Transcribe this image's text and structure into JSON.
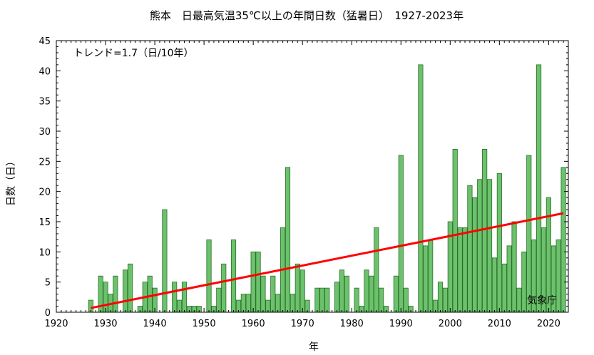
{
  "chart_data": {
    "type": "bar",
    "title": "熊本　日最高気温35℃以上の年間日数（猛暑日）　1927-2023年",
    "xlabel": "年",
    "ylabel": "日数（日）",
    "xlim": [
      1920,
      2024
    ],
    "ylim": [
      0,
      45
    ],
    "x_ticks": [
      1920,
      1930,
      1940,
      1950,
      1960,
      1970,
      1980,
      1990,
      2000,
      2010,
      2020
    ],
    "y_ticks": [
      0,
      5,
      10,
      15,
      20,
      25,
      30,
      35,
      40,
      45
    ],
    "grid": false,
    "bar_color": "#6cc26c",
    "bar_edge_color": "#2a6e2a",
    "trend_color": "#ff0000",
    "annotation": "トレンド=1.7（日/10年）",
    "source": "気象庁",
    "series": [
      {
        "x": [
          1927,
          1928,
          1929,
          1930,
          1931,
          1932,
          1933,
          1934,
          1935,
          1936,
          1937,
          1938,
          1939,
          1940,
          1941,
          1942,
          1943,
          1944,
          1945,
          1946,
          1947,
          1948,
          1949,
          1950,
          1951,
          1952,
          1953,
          1954,
          1955,
          1956,
          1957,
          1958,
          1959,
          1960,
          1961,
          1962,
          1963,
          1964,
          1965,
          1966,
          1967,
          1968,
          1969,
          1970,
          1971,
          1972,
          1973,
          1974,
          1975,
          1976,
          1977,
          1978,
          1979,
          1980,
          1981,
          1982,
          1983,
          1984,
          1985,
          1986,
          1987,
          1988,
          1989,
          1990,
          1991,
          1992,
          1993,
          1994,
          1995,
          1996,
          1997,
          1998,
          1999,
          2000,
          2001,
          2002,
          2003,
          2004,
          2005,
          2006,
          2007,
          2008,
          2009,
          2010,
          2011,
          2012,
          2013,
          2014,
          2015,
          2016,
          2017,
          2018,
          2019,
          2020,
          2021,
          2022,
          2023
        ],
        "values": [
          2,
          0,
          6,
          5,
          3,
          6,
          0,
          7,
          8,
          0,
          1,
          5,
          6,
          4,
          0,
          17,
          0,
          5,
          2,
          5,
          1,
          1,
          1,
          0,
          12,
          1,
          4,
          8,
          0,
          12,
          2,
          3,
          3,
          10,
          10,
          6,
          2,
          6,
          3,
          14,
          24,
          3,
          8,
          7,
          2,
          0,
          4,
          4,
          4,
          0,
          5,
          7,
          6,
          0,
          4,
          1,
          7,
          6,
          14,
          4,
          1,
          0,
          6,
          26,
          4,
          1,
          0,
          41,
          11,
          12,
          2,
          5,
          4,
          15,
          27,
          14,
          14,
          21,
          19,
          22,
          27,
          22,
          9,
          23,
          8,
          11,
          15,
          4,
          10,
          26,
          12,
          41,
          14,
          19,
          11,
          12,
          24
        ]
      }
    ],
    "trend": {
      "x": [
        1927,
        2023
      ],
      "y": [
        0.7,
        16.4
      ]
    }
  }
}
